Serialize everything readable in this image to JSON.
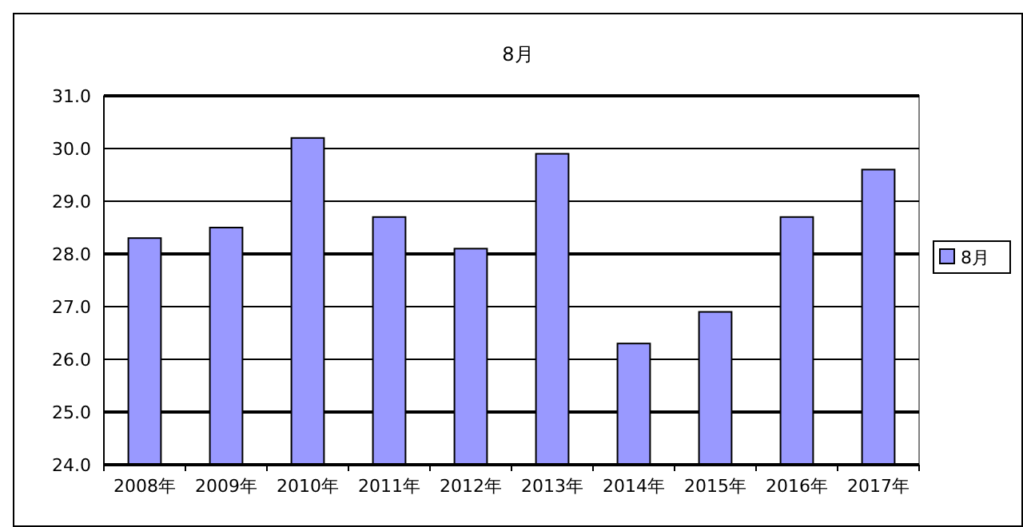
{
  "chart_data": {
    "type": "bar",
    "title": "8月",
    "categories": [
      "2008年",
      "2009年",
      "2010年",
      "2011年",
      "2012年",
      "2013年",
      "2014年",
      "2015年",
      "2016年",
      "2017年"
    ],
    "series": [
      {
        "name": "8月",
        "color": "#9999ff",
        "values": [
          28.3,
          28.5,
          30.2,
          28.7,
          28.1,
          29.9,
          26.3,
          26.9,
          28.7,
          29.6
        ]
      }
    ],
    "ylim": [
      24,
      31
    ],
    "yticks": [
      {
        "value": 24,
        "label": "24.0"
      },
      {
        "value": 25,
        "label": "25.0"
      },
      {
        "value": 26,
        "label": "26.0"
      },
      {
        "value": 27,
        "label": "27.0"
      },
      {
        "value": 28,
        "label": "28.0"
      },
      {
        "value": 29,
        "label": "29.0"
      },
      {
        "value": 30,
        "label": "30.0"
      },
      {
        "value": 31,
        "label": "31.0"
      }
    ],
    "grid": "y",
    "legend": "right"
  }
}
